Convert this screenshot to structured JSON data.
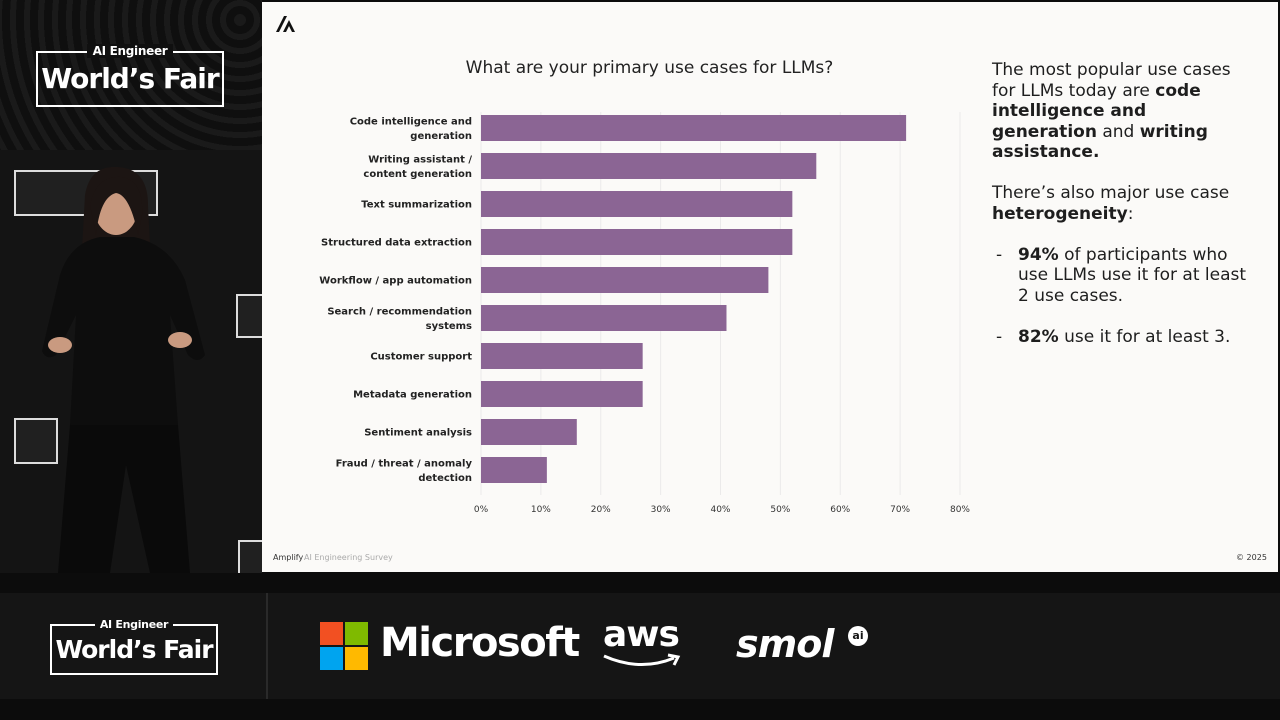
{
  "event": {
    "label_small": "AI Engineer",
    "label_big": "World’s Fair"
  },
  "slide": {
    "chart_title": "What are your primary use cases for LLMs?",
    "footer_brand": "Amplify",
    "footer_source": "AI Engineering Survey",
    "footer_year": "© 2025",
    "side": {
      "p1_a": "The most popular use cases for LLMs today are ",
      "p1_b": "code intelligence and generation",
      "p1_c": " and ",
      "p1_d": "writing assistance.",
      "p2_a": "There’s also major use case ",
      "p2_b": "heterogeneity",
      "p2_c": ":",
      "b1_dash": "-",
      "b1_a": "94%",
      "b1_b": " of participants who use LLMs use it for at least 2 use cases.",
      "b2_dash": "-",
      "b2_a": "82%",
      "b2_b": " use it for at least 3."
    }
  },
  "sponsors": {
    "microsoft": "Microsoft",
    "aws": "aws",
    "smol": "smol",
    "smol_badge": "ai"
  },
  "chart_data": {
    "type": "bar",
    "orientation": "horizontal",
    "title": "What are your primary use cases for LLMs?",
    "categories": [
      "Code intelligence and generation",
      "Writing assistant / content generation",
      "Text summarization",
      "Structured data extraction",
      "Workflow / app automation",
      "Search / recommendation systems",
      "Customer support",
      "Metadata generation",
      "Sentiment analysis",
      "Fraud / threat / anomaly detection"
    ],
    "values": [
      71,
      56,
      52,
      52,
      48,
      41,
      27,
      27,
      16,
      11
    ],
    "xlim": [
      0,
      80
    ],
    "xticks": [
      "0%",
      "10%",
      "20%",
      "30%",
      "40%",
      "50%",
      "60%",
      "70%",
      "80%"
    ],
    "bar_color": "#8b6594",
    "grid": true
  }
}
